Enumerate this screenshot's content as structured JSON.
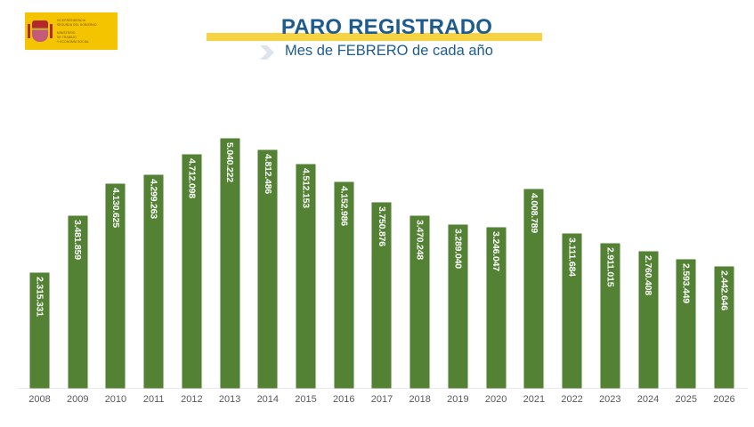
{
  "header": {
    "logo": {
      "lines": [
        "VICEPRESIDENCIA",
        "SEGUNDA DEL GOBIERNO",
        "MINISTERIO",
        "DE TRABAJO",
        "Y ECONOMÍA SOCIAL"
      ]
    },
    "title": "PARO REGISTRADO",
    "subtitle": "Mes de FEBRERO de cada año"
  },
  "colors": {
    "bar": "#548235",
    "title": "#1e5b8f",
    "accent_band": "#f5d342",
    "logo_bg": "#f5c400"
  },
  "chart_data": {
    "type": "bar",
    "title": "PARO REGISTRADO",
    "subtitle": "Mes de FEBRERO de cada año",
    "xlabel": "",
    "ylabel": "",
    "grid": false,
    "legend": null,
    "categories": [
      "2008",
      "2009",
      "2010",
      "2011",
      "2012",
      "2013",
      "2014",
      "2015",
      "2016",
      "2017",
      "2018",
      "2019",
      "2020",
      "2021",
      "2022",
      "2023",
      "2024",
      "2025",
      "2026"
    ],
    "values": [
      2315331,
      3481859,
      4130625,
      4299263,
      4712098,
      5040222,
      4812486,
      4512153,
      4152986,
      3750876,
      3470248,
      3289040,
      3246047,
      4008789,
      3111684,
      2911015,
      2760408,
      2593449,
      2442646
    ],
    "labels": [
      "2.315.331",
      "3.481.859",
      "4.130.625",
      "4.299.263",
      "4.712.098",
      "5.040.222",
      "4.812.486",
      "4.512.153",
      "4.152.986",
      "3.750.876",
      "3.470.248",
      "3.289.040",
      "3.246.047",
      "4.008.789",
      "3.111.684",
      "2.911.015",
      "2.760.408",
      "2.593.449",
      "2.442.646"
    ],
    "ylim": [
      0,
      5040222
    ]
  }
}
